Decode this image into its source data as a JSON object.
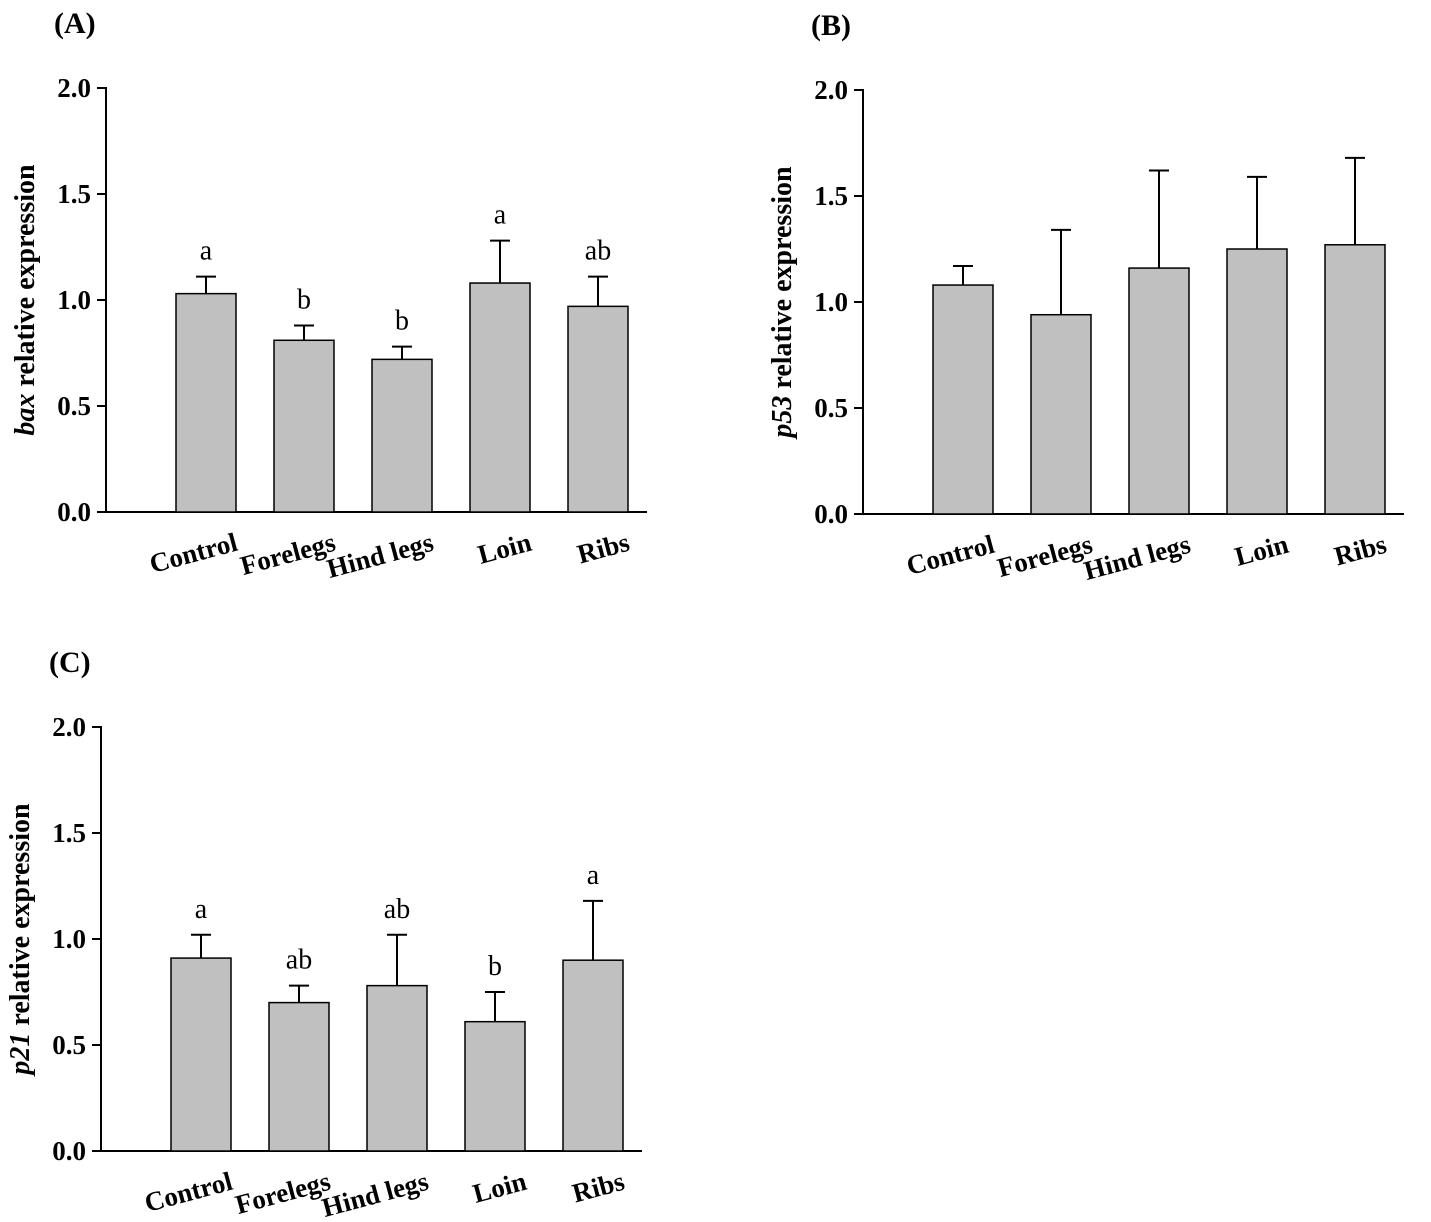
{
  "colors": {
    "bar_fill": "#c0c0c0",
    "axis_line": "#000000"
  },
  "chart_data": [
    {
      "panel": "(A)",
      "type": "bar",
      "categories": [
        "Control",
        "Forelegs",
        "Hind legs",
        "Loin",
        "Ribs"
      ],
      "values": [
        1.03,
        0.81,
        0.72,
        1.08,
        0.97
      ],
      "errors": [
        0.08,
        0.07,
        0.06,
        0.2,
        0.14
      ],
      "letters": [
        "a",
        "b",
        "b",
        "a",
        "ab"
      ],
      "ylabel": {
        "gene": "bax",
        "text": "relative expression"
      },
      "xlabel": "",
      "ylim": [
        0,
        2.0
      ],
      "yticks": [
        "0.0",
        "0.5",
        "1.0",
        "1.5",
        "2.0"
      ],
      "grid": false
    },
    {
      "panel": "(B)",
      "type": "bar",
      "categories": [
        "Control",
        "Forelegs",
        "Hind legs",
        "Loin",
        "Ribs"
      ],
      "values": [
        1.08,
        0.94,
        1.16,
        1.25,
        1.27
      ],
      "errors": [
        0.09,
        0.4,
        0.46,
        0.34,
        0.41
      ],
      "ylabel": {
        "gene": "p53",
        "text": "relative expression"
      },
      "xlabel": "",
      "ylim": [
        0,
        2.0
      ],
      "yticks": [
        "0.0",
        "0.5",
        "1.0",
        "1.5",
        "2.0"
      ],
      "grid": false
    },
    {
      "panel": "(C)",
      "type": "bar",
      "categories": [
        "Control",
        "Forelegs",
        "Hind legs",
        "Loin",
        "Ribs"
      ],
      "values": [
        0.91,
        0.7,
        0.78,
        0.61,
        0.9
      ],
      "errors": [
        0.11,
        0.08,
        0.24,
        0.14,
        0.28
      ],
      "letters": [
        "a",
        "ab",
        "ab",
        "b",
        "a"
      ],
      "ylabel": {
        "gene": "p21",
        "text": "relative expression"
      },
      "xlabel": "",
      "ylim": [
        0,
        2.0
      ],
      "yticks": [
        "0.0",
        "0.5",
        "1.0",
        "1.5",
        "2.0"
      ],
      "grid": false
    }
  ]
}
